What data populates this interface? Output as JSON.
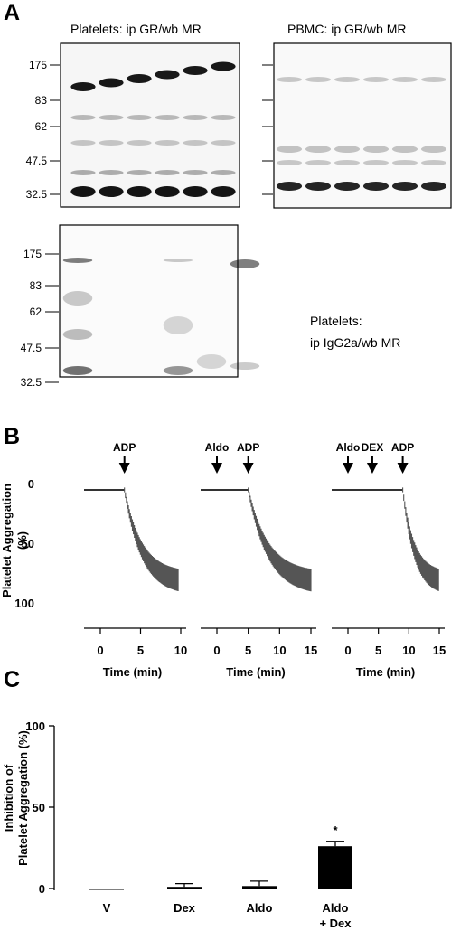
{
  "panel_a": {
    "letter": "A",
    "blots": [
      {
        "title": "Platelets: ip GR/wb MR",
        "markers": [
          "175",
          "83",
          "62",
          "47.5",
          "32.5"
        ]
      },
      {
        "title": "PBMC: ip GR/wb MR",
        "markers": []
      },
      {
        "title": "",
        "markers": [
          "175",
          "83",
          "62",
          "47.5",
          "32.5"
        ]
      }
    ],
    "control_label_line1": "Platelets:",
    "control_label_line2": "ip IgG2a/wb MR"
  },
  "panel_b": {
    "letter": "B",
    "ylabel_line1": "Platelet Aggregation",
    "ylabel_line2": "(%)",
    "yticks": [
      "0",
      "50",
      "100"
    ],
    "traces": [
      {
        "arrows": [
          {
            "label": "ADP",
            "time": 3
          }
        ],
        "xticks": [
          "0",
          "5",
          "10"
        ],
        "xmax": 10,
        "xlabel": "Time (min)"
      },
      {
        "arrows": [
          {
            "label": "Aldo",
            "time": 0
          },
          {
            "label": "ADP",
            "time": 5
          }
        ],
        "xticks": [
          "0",
          "5",
          "10",
          "15"
        ],
        "xmax": 15,
        "xlabel": "Time (min)"
      },
      {
        "arrows": [
          {
            "label": "Aldo",
            "time": 0
          },
          {
            "label": "DEX",
            "time": 4
          },
          {
            "label": "ADP",
            "time": 9
          }
        ],
        "xticks": [
          "0",
          "5",
          "10",
          "15"
        ],
        "xmax": 15,
        "xlabel": "Time (min)"
      }
    ]
  },
  "chart_data": {
    "type": "bar",
    "categories": [
      "V",
      "Dex",
      "Aldo",
      "Aldo\n+ Dex"
    ],
    "values": [
      0,
      1,
      1.5,
      26
    ],
    "errors": [
      0,
      2,
      3,
      3
    ],
    "ylabel": "Inhibition of\nPlatelet Aggregation (%)",
    "ylim": [
      0,
      100
    ],
    "yticks": [
      "0",
      "50",
      "100"
    ],
    "significance": [
      {
        "category": "Aldo\n+ Dex",
        "mark": "*"
      }
    ],
    "bar_color": "#000000"
  },
  "panel_c": {
    "letter": "C"
  }
}
